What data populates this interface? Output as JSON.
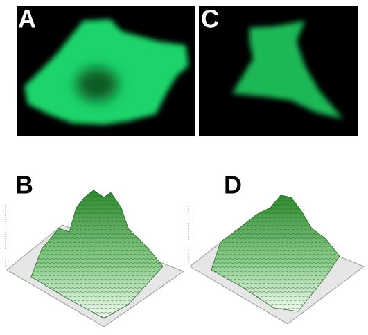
{
  "panels": [
    {
      "label": "A"
    },
    {
      "label": "C"
    },
    {
      "label": "B"
    },
    {
      "label": "D"
    }
  ]
}
